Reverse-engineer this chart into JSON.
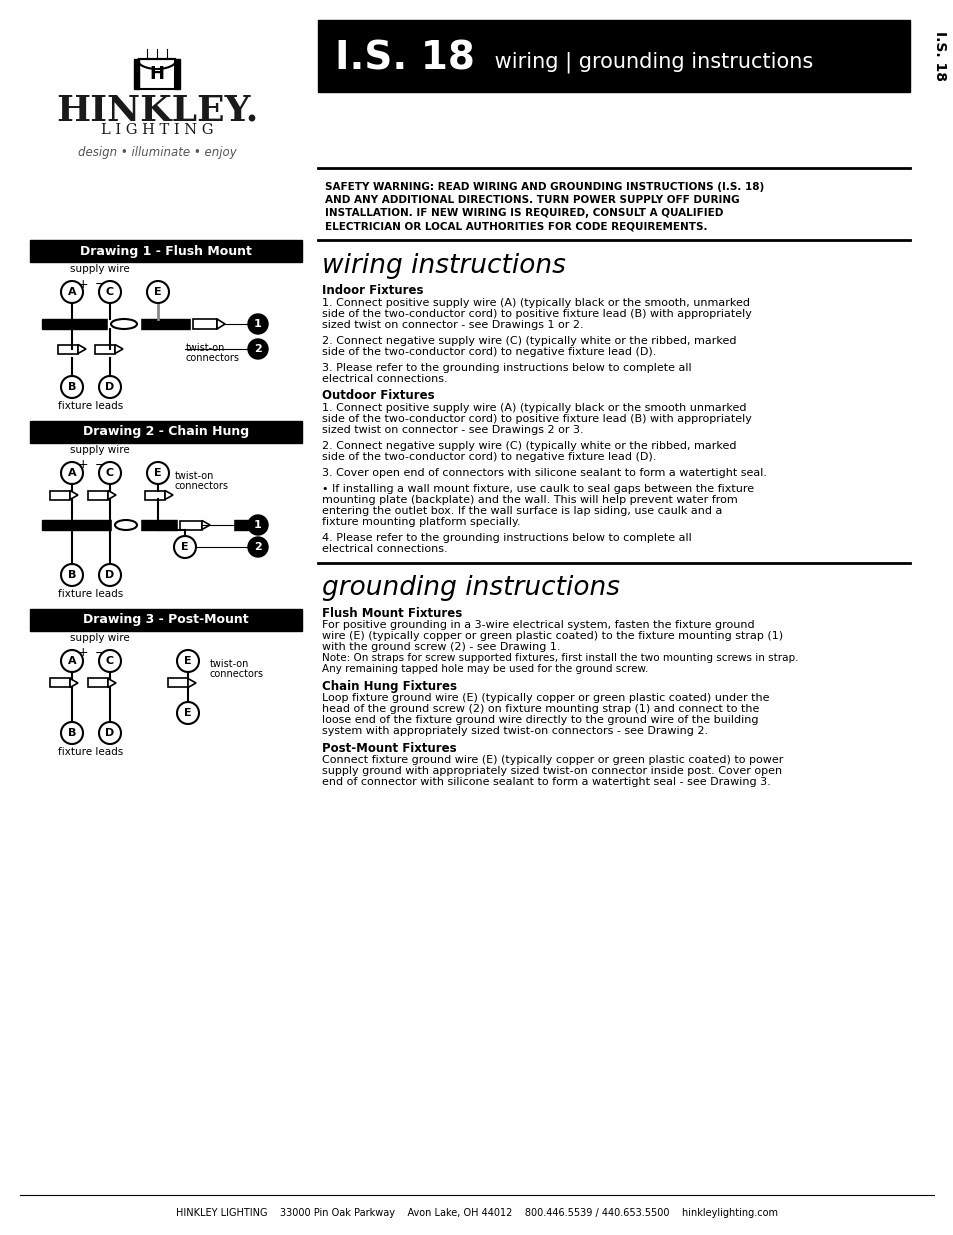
{
  "bg_color": "#ffffff",
  "black": "#000000",
  "white": "#ffffff",
  "drawing1_title": "Drawing 1 - Flush Mount",
  "drawing2_title": "Drawing 2 - Chain Hung",
  "drawing3_title": "Drawing 3 - Post-Mount",
  "footer": "HINKLEY LIGHTING    33000 Pin Oak Parkway    Avon Lake, OH 44012    800.446.5539 / 440.653.5500    hinkleylighting.com",
  "tagline": "design • illuminate • enjoy",
  "header_is18": "I.S. 18",
  "header_subtitle": " wiring | grounding instructions",
  "wiring_title": "wiring instructions",
  "grounding_title": "grounding instructions",
  "safety_lines": [
    "SAFETY WARNING: READ WIRING AND GROUNDING INSTRUCTIONS (I.S. 18)",
    "AND ANY ADDITIONAL DIRECTIONS. TURN POWER SUPPLY OFF DURING",
    "INSTALLATION. IF NEW WIRING IS REQUIRED, CONSULT A QUALIFIED",
    "ELECTRICIAN OR LOCAL AUTHORITIES FOR CODE REQUIREMENTS."
  ],
  "indoor_header": "Indoor Fixtures",
  "outdoor_header": "Outdoor Fixtures",
  "flush_header": "Flush Mount Fixtures",
  "chain_header": "Chain Hung Fixtures",
  "post_header": "Post-Mount Fixtures",
  "indoor_lines": [
    "1. Connect positive supply wire (A) (typically black or the smooth, unmarked",
    "side of the two-conductor cord) to positive fixture lead (B) with appropriately",
    "sized twist on connector - see Drawings 1 or 2.",
    "",
    "2. Connect negative supply wire (C) (typically white or the ribbed, marked",
    "side of the two-conductor cord) to negative fixture lead (D).",
    "",
    "3. Please refer to the grounding instructions below to complete all",
    "electrical connections."
  ],
  "outdoor_lines": [
    "1. Connect positive supply wire (A) (typically black or the smooth unmarked",
    "side of the two-conductor cord) to positive fixture lead (B) with appropriately",
    "sized twist on connector - see Drawings 2 or 3.",
    "",
    "2. Connect negative supply wire (C) (typically white or the ribbed, marked",
    "side of the two-conductor cord) to negative fixture lead (D).",
    "",
    "3. Cover open end of connectors with silicone sealant to form a watertight seal.",
    "",
    "• If installing a wall mount fixture, use caulk to seal gaps between the fixture",
    "mounting plate (backplate) and the wall. This will help prevent water from",
    "entering the outlet box. If the wall surface is lap siding, use caulk and a",
    "fixture mounting platform specially.",
    "",
    "4. Please refer to the grounding instructions below to complete all",
    "electrical connections."
  ],
  "flush_lines": [
    "For positive grounding in a 3-wire electrical system, fasten the fixture ground",
    "wire (E) (typically copper or green plastic coated) to the fixture mounting strap (1)",
    "with the ground screw (2) - see Drawing 1.",
    "Note: On straps for screw supported fixtures, first install the two mounting screws in strap.",
    "Any remaining tapped hole may be used for the ground screw."
  ],
  "chain_lines": [
    "Loop fixture ground wire (E) (typically copper or green plastic coated) under the",
    "head of the ground screw (2) on fixture mounting strap (1) and connect to the",
    "loose end of the fixture ground wire directly to the ground wire of the building",
    "system with appropriately sized twist-on connectors - see Drawing 2."
  ],
  "post_lines": [
    "Connect fixture ground wire (E) (typically copper or green plastic coated) to power",
    "supply ground with appropriately sized twist-on connector inside post. Cover open",
    "end of connector with silicone sealant to form a watertight seal - see Drawing 3."
  ]
}
